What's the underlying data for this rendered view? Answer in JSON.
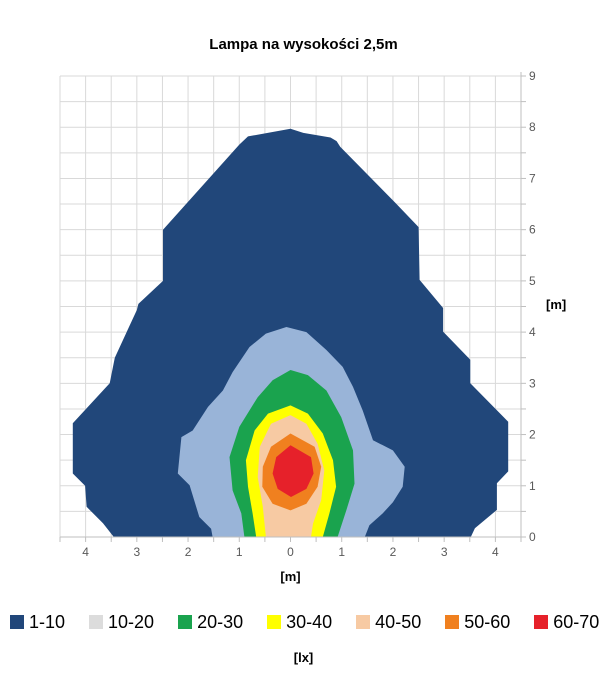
{
  "chart_data": {
    "type": "filled-contour",
    "title": "Lampa na wysokości 2,5m",
    "xlabel": "[m]",
    "ylabel": "[m]",
    "legend_unit_label": "[lx]",
    "legend_position": "bottom",
    "grid": true,
    "grid_step": 0.5,
    "xlim": [
      -4.5,
      4.5
    ],
    "ylim": [
      0,
      9
    ],
    "x_tick_values": [
      -4,
      -3,
      -2,
      -1,
      0,
      1,
      2,
      3,
      4
    ],
    "x_tick_labels": [
      "4",
      "3",
      "2",
      "1",
      "0",
      "1",
      "2",
      "3",
      "4"
    ],
    "y_tick_values": [
      0,
      1,
      2,
      3,
      4,
      5,
      6,
      7,
      8,
      9
    ],
    "y_tick_labels": [
      "0",
      "1",
      "2",
      "3",
      "4",
      "5",
      "6",
      "7",
      "8",
      "9"
    ],
    "colors": {
      "gridline": "#D9D9D9",
      "axis_line": "#BFBFBF",
      "tick_label": "#595959",
      "background": "#FFFFFF"
    },
    "bands": [
      {
        "range": "1-10",
        "fill": "#21477A",
        "legend_swatch": "#21477A",
        "polygon": [
          [
            -3.45,
            0
          ],
          [
            -3.66,
            0.27
          ],
          [
            -3.98,
            0.59
          ],
          [
            -4.01,
            1.0
          ],
          [
            -4.25,
            1.24
          ],
          [
            -4.25,
            2.22
          ],
          [
            -3.53,
            3.0
          ],
          [
            -3.43,
            3.5
          ],
          [
            -3.0,
            4.43
          ],
          [
            -2.97,
            4.55
          ],
          [
            -2.49,
            5.0
          ],
          [
            -2.49,
            6.0
          ],
          [
            -1.0,
            7.66
          ],
          [
            -0.83,
            7.82
          ],
          [
            0,
            7.97
          ],
          [
            0.25,
            7.89
          ],
          [
            0.78,
            7.8
          ],
          [
            0.9,
            7.73
          ],
          [
            0.97,
            7.62
          ],
          [
            2.06,
            6.51
          ],
          [
            2.5,
            6.05
          ],
          [
            2.52,
            5.02
          ],
          [
            2.98,
            4.47
          ],
          [
            2.98,
            4.01
          ],
          [
            3.51,
            3.46
          ],
          [
            3.51,
            3.0
          ],
          [
            4.25,
            2.25
          ],
          [
            4.25,
            1.28
          ],
          [
            4.03,
            1.05
          ],
          [
            4.03,
            0.53
          ],
          [
            3.6,
            0.17
          ],
          [
            3.52,
            0
          ]
        ]
      },
      {
        "range": "10-20",
        "fill": "#99B4D8",
        "legend_swatch": "#DCDCDC",
        "polygon": [
          [
            -1.52,
            0
          ],
          [
            -1.55,
            0.16
          ],
          [
            -1.78,
            0.39
          ],
          [
            -1.97,
            1.01
          ],
          [
            -2.2,
            1.24
          ],
          [
            -2.13,
            1.95
          ],
          [
            -1.91,
            2.08
          ],
          [
            -1.61,
            2.54
          ],
          [
            -1.32,
            2.86
          ],
          [
            -1.13,
            3.22
          ],
          [
            -0.8,
            3.71
          ],
          [
            -0.48,
            3.97
          ],
          [
            -0.08,
            4.1
          ],
          [
            0.31,
            4.0
          ],
          [
            0.7,
            3.65
          ],
          [
            1.02,
            3.32
          ],
          [
            1.22,
            2.93
          ],
          [
            1.41,
            2.47
          ],
          [
            1.61,
            1.89
          ],
          [
            2.0,
            1.69
          ],
          [
            2.23,
            1.37
          ],
          [
            2.19,
            0.98
          ],
          [
            2.0,
            0.68
          ],
          [
            1.8,
            0.46
          ],
          [
            1.54,
            0.23
          ],
          [
            1.45,
            0
          ]
        ]
      },
      {
        "range": "20-30",
        "fill": "#1AA34E",
        "legend_swatch": "#1AA34E",
        "polygon": [
          [
            -0.9,
            0
          ],
          [
            -0.96,
            0.46
          ],
          [
            -1.13,
            0.91
          ],
          [
            -1.19,
            1.56
          ],
          [
            -1.0,
            2.15
          ],
          [
            -0.64,
            2.73
          ],
          [
            -0.35,
            3.06
          ],
          [
            0,
            3.26
          ],
          [
            0.34,
            3.16
          ],
          [
            0.7,
            2.86
          ],
          [
            0.99,
            2.34
          ],
          [
            1.22,
            1.69
          ],
          [
            1.25,
            1.04
          ],
          [
            1.09,
            0.52
          ],
          [
            0.92,
            0
          ]
        ]
      },
      {
        "range": "30-40",
        "fill": "#FFFF00",
        "legend_swatch": "#FFFF00",
        "polygon": [
          [
            -0.67,
            0
          ],
          [
            -0.74,
            0.46
          ],
          [
            -0.83,
            0.98
          ],
          [
            -0.87,
            1.5
          ],
          [
            -0.7,
            2.08
          ],
          [
            -0.44,
            2.41
          ],
          [
            0,
            2.57
          ],
          [
            0.34,
            2.41
          ],
          [
            0.63,
            2.02
          ],
          [
            0.83,
            1.5
          ],
          [
            0.89,
            0.98
          ],
          [
            0.76,
            0.46
          ],
          [
            0.63,
            0
          ]
        ]
      },
      {
        "range": "40-50",
        "fill": "#F7CAA3",
        "legend_swatch": "#F7CAA3",
        "polygon": [
          [
            -0.48,
            0
          ],
          [
            -0.54,
            0.59
          ],
          [
            -0.64,
            1.17
          ],
          [
            -0.6,
            1.76
          ],
          [
            -0.38,
            2.21
          ],
          [
            0,
            2.38
          ],
          [
            0.31,
            2.21
          ],
          [
            0.53,
            1.82
          ],
          [
            0.66,
            1.3
          ],
          [
            0.6,
            0.72
          ],
          [
            0.44,
            0.26
          ],
          [
            0.4,
            0
          ]
        ]
      },
      {
        "range": "50-60",
        "fill": "#F0801F",
        "legend_swatch": "#F0801F",
        "polygon": [
          [
            0,
            2.02
          ],
          [
            -0.38,
            1.76
          ],
          [
            -0.54,
            1.37
          ],
          [
            -0.55,
            0.98
          ],
          [
            -0.35,
            0.65
          ],
          [
            0,
            0.52
          ],
          [
            0.31,
            0.65
          ],
          [
            0.53,
            0.98
          ],
          [
            0.6,
            1.37
          ],
          [
            0.47,
            1.76
          ]
        ]
      },
      {
        "range": "60-70",
        "fill": "#E6212A",
        "legend_swatch": "#E6212A",
        "polygon": [
          [
            0,
            1.79
          ],
          [
            -0.28,
            1.56
          ],
          [
            -0.35,
            1.24
          ],
          [
            -0.25,
            0.94
          ],
          [
            0.01,
            0.78
          ],
          [
            0.31,
            0.94
          ],
          [
            0.45,
            1.24
          ],
          [
            0.4,
            1.56
          ]
        ]
      }
    ],
    "legend_entries": [
      "1-10",
      "10-20",
      "20-30",
      "30-40",
      "40-50",
      "50-60",
      "60-70"
    ]
  }
}
